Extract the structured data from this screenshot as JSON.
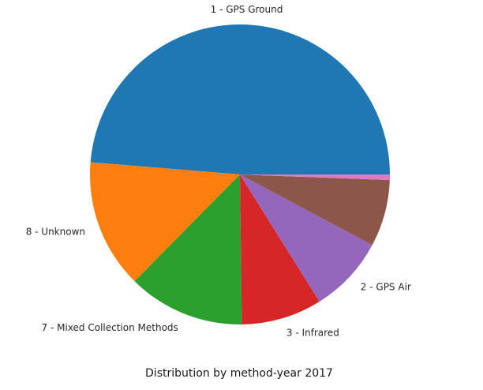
{
  "chart_data": {
    "type": "pie",
    "title": "",
    "xlabel": "Distribution by method-year 2017",
    "ylabel": "",
    "start_angle_deg": 0,
    "direction": "counterclockwise",
    "slices": [
      {
        "label": "1 - GPS Ground",
        "value": 48.7,
        "color": "#1f77b4",
        "show_label": true
      },
      {
        "label": "8 - Unknown",
        "value": 13.9,
        "color": "#ff7f0e",
        "show_label": true
      },
      {
        "label": "7 - Mixed Collection Methods",
        "value": 12.6,
        "color": "#2ca02c",
        "show_label": true
      },
      {
        "label": "3 - Infrared",
        "value": 8.7,
        "color": "#d62728",
        "show_label": true
      },
      {
        "label": "2 - GPS Air",
        "value": 8.3,
        "color": "#9467bd",
        "show_label": true
      },
      {
        "label": "",
        "value": 7.2,
        "color": "#8c564b",
        "show_label": false
      },
      {
        "label": "",
        "value": 0.6,
        "color": "#e377c2",
        "show_label": false
      }
    ]
  }
}
